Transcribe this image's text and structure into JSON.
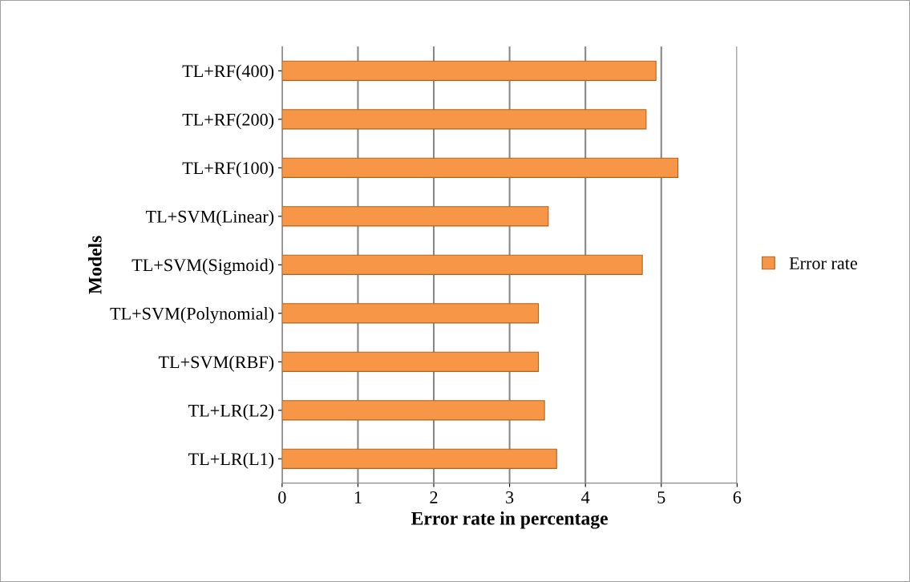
{
  "chart_data": {
    "type": "bar",
    "orientation": "horizontal",
    "xlabel": "Error rate in percentage",
    "ylabel": "Models",
    "categories": [
      "TL+RF(400)",
      "TL+RF(200)",
      "TL+RF(100)",
      "TL+SVM(Linear)",
      "TL+SVM(Sigmoid)",
      "TL+SVM(Polynomial)",
      "TL+SVM(RBF)",
      "TL+LR(L2)",
      "TL+LR(L1)"
    ],
    "series": [
      {
        "name": "Error rate",
        "color": "#f79646",
        "values": [
          4.93,
          4.8,
          5.22,
          3.51,
          4.75,
          3.38,
          3.38,
          3.46,
          3.62
        ]
      }
    ],
    "xlim": [
      0,
      6
    ],
    "xticks": [
      0,
      1,
      2,
      3,
      4,
      5,
      6
    ],
    "grid": "x",
    "legend": "right"
  }
}
